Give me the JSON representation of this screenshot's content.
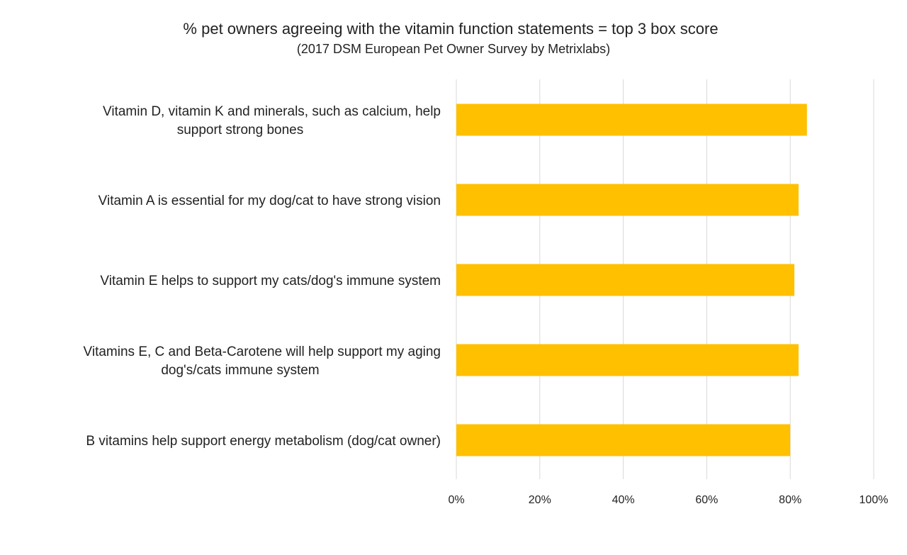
{
  "chart_data": {
    "type": "bar",
    "orientation": "horizontal",
    "title": "% pet owners agreeing with the vitamin function statements = top 3 box score",
    "subtitle": "(2017 DSM European Pet Owner Survey by Metrixlabs)",
    "categories": [
      [
        "Vitamin D, vitamin K and minerals, such as calcium, help",
        "support strong bones"
      ],
      [
        "Vitamin A is essential for my dog/cat to have strong vision"
      ],
      [
        "Vitamin E helps to support my cats/dog's immune system"
      ],
      [
        "Vitamins E, C and Beta-Carotene will help support my aging",
        "dog's/cats immune system"
      ],
      [
        "B vitamins help support energy metabolism (dog/cat owner)"
      ]
    ],
    "values": [
      84,
      82,
      81,
      82,
      80
    ],
    "xlim": [
      0,
      100
    ],
    "xticks": [
      "0%",
      "20%",
      "40%",
      "60%",
      "80%",
      "100%"
    ],
    "grid": true,
    "legend": "none",
    "colors": {
      "bar": "#FFC000",
      "grid": "#D9D9D9",
      "text": "#222222"
    }
  }
}
